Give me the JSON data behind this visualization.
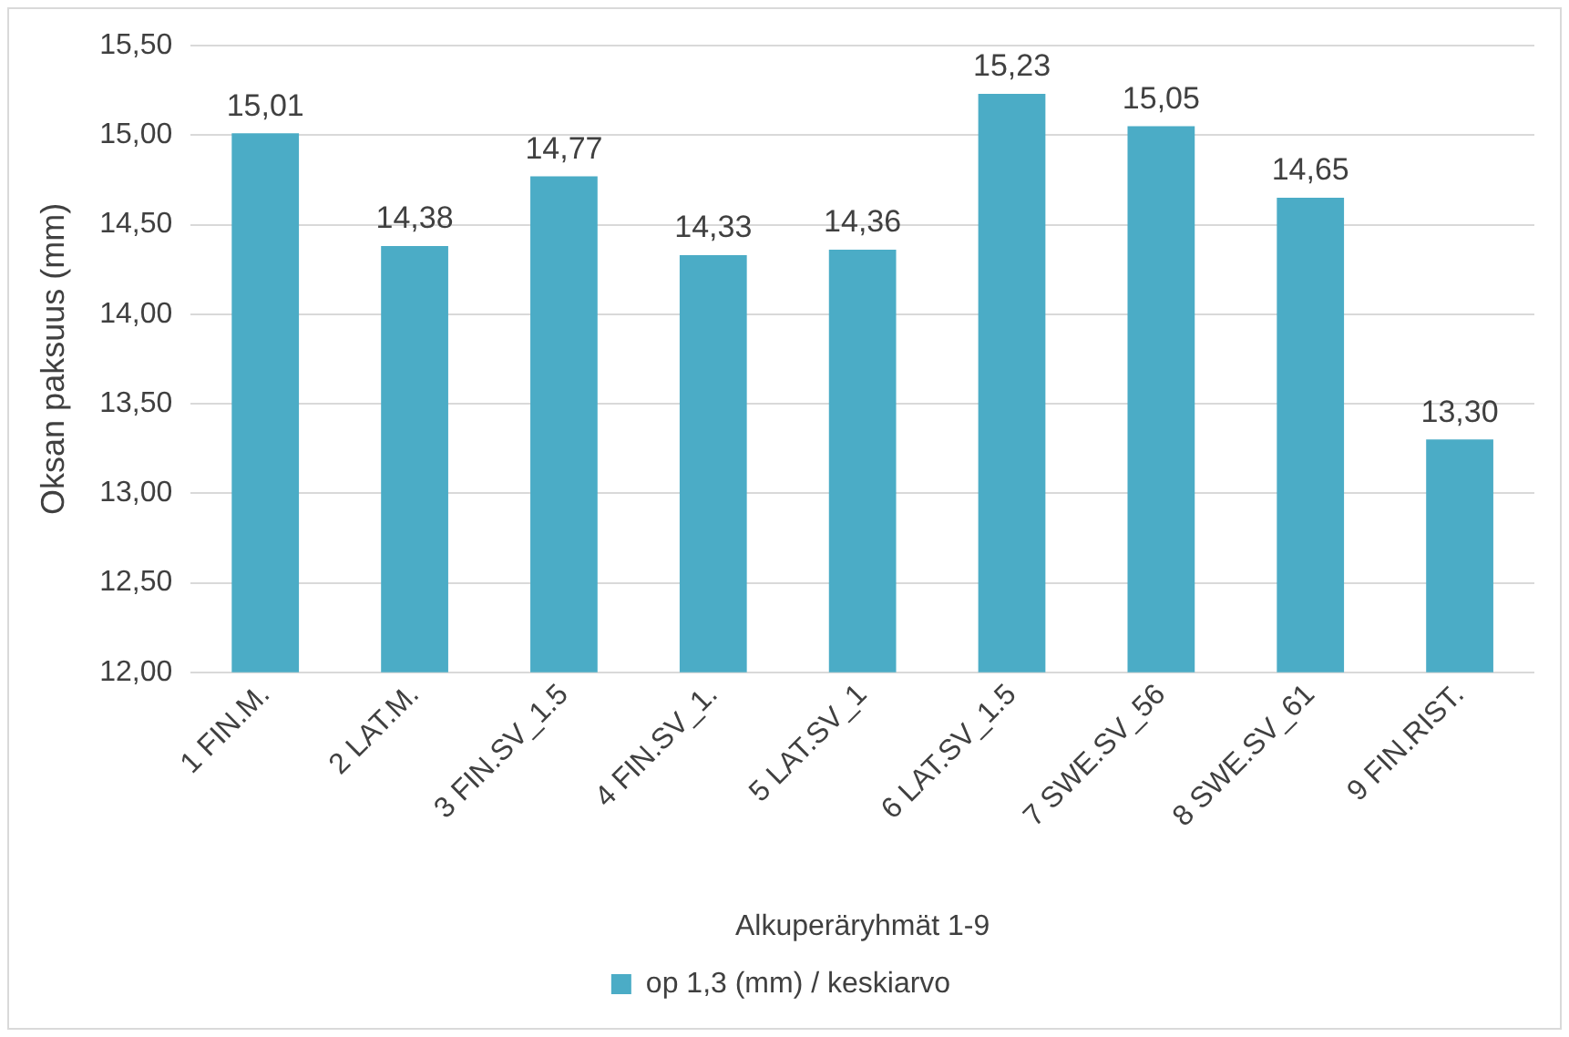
{
  "chart_data": {
    "type": "bar",
    "categories": [
      "1 FIN.M.",
      "2 LAT.M.",
      "3 FIN.SV_1.5",
      "4 FIN.SV_1.",
      "5 LAT.SV_1",
      "6 LAT.SV_1.5",
      "7 SWE.SV_56",
      "8 SWE.SV_61",
      "9 FIN.RIST."
    ],
    "series": [
      {
        "name": "op 1,3 (mm) / keskiarvo",
        "color": "#4bacc6",
        "values": [
          15.01,
          14.38,
          14.77,
          14.33,
          14.36,
          15.23,
          15.05,
          14.65,
          13.3
        ],
        "value_labels": [
          "15,01",
          "14,38",
          "14,77",
          "14,33",
          "14,36",
          "15,23",
          "15,05",
          "14,65",
          "13,30"
        ]
      }
    ],
    "xlabel": "Alkuperäryhmät 1-9",
    "ylabel": "Oksan paksuus (mm)",
    "ylim": [
      12,
      15.5
    ],
    "yticks": [
      {
        "value": 12,
        "label": "12,00"
      },
      {
        "value": 12.5,
        "label": "12,50"
      },
      {
        "value": 13,
        "label": "13,00"
      },
      {
        "value": 13.5,
        "label": "13,50"
      },
      {
        "value": 14,
        "label": "14,00"
      },
      {
        "value": 14.5,
        "label": "14,50"
      },
      {
        "value": 15,
        "label": "15,00"
      },
      {
        "value": 15.5,
        "label": "15,50"
      }
    ],
    "grid": "y",
    "legend": "bottom"
  }
}
